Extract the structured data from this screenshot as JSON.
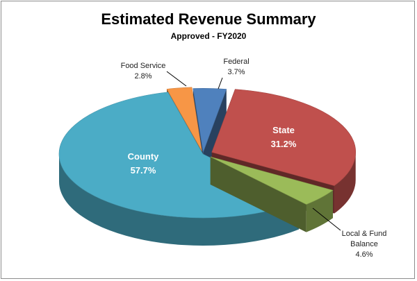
{
  "chart_data": {
    "type": "pie",
    "title": "Estimated Revenue Summary",
    "subtitle": "Approved - FY2020",
    "slices": [
      {
        "name": "Federal",
        "value": 3.7,
        "display": "3.7%",
        "color": "#4f81bd",
        "label_style": "outside",
        "label_lines": [
          "Federal",
          "3.7%"
        ]
      },
      {
        "name": "State",
        "value": 31.2,
        "display": "31.2%",
        "color": "#c0504d",
        "label_style": "inside",
        "label_lines": [
          "State",
          "31.2%"
        ]
      },
      {
        "name": "Local & Fund Balance",
        "value": 4.6,
        "display": "4.6%",
        "color": "#9bbb59",
        "label_style": "outside",
        "label_lines": [
          "Local & Fund",
          "Balance",
          "4.6%"
        ]
      },
      {
        "name": "County",
        "value": 57.7,
        "display": "57.7%",
        "color": "#4bacc6",
        "label_style": "inside",
        "label_lines": [
          "County",
          "57.7%"
        ]
      },
      {
        "name": "Food Service",
        "value": 2.8,
        "display": "2.8%",
        "color": "#f79646",
        "label_style": "outside",
        "label_lines": [
          "Food Service",
          "2.8%"
        ]
      }
    ]
  }
}
